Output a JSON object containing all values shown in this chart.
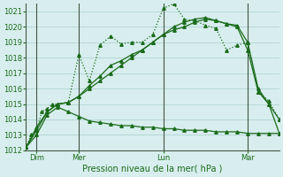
{
  "background_color": "#d8eeee",
  "grid_color": "#aacccc",
  "line_color": "#1a6b1a",
  "text_color": "#1a6b1a",
  "xlabel": "Pression niveau de la mer( hPa )",
  "ylim": [
    1012,
    1021.5
  ],
  "yticks": [
    1012,
    1013,
    1014,
    1015,
    1016,
    1017,
    1018,
    1019,
    1020,
    1021
  ],
  "vline_positions": [
    1,
    5,
    13,
    21
  ],
  "vline_labels": [
    "Dim",
    "Mer",
    "Lun",
    "Mar"
  ],
  "series": [
    {
      "x": [
        0,
        0.5,
        1.0,
        1.5,
        2.0,
        2.5,
        3.0,
        4.0,
        5.0,
        6.0,
        7.0,
        8.0,
        9.0,
        10.0,
        11.0,
        12.0,
        13.0,
        14.0,
        15.0,
        16.0,
        17.0,
        18.0,
        19.0,
        20.0,
        21.0,
        22.0,
        23.0,
        24.0
      ],
      "y": [
        1012.2,
        1013.0,
        1013.3,
        1014.5,
        1014.7,
        1015.0,
        1015.0,
        1015.1,
        1018.2,
        1016.5,
        1018.8,
        1019.4,
        1018.9,
        1019.0,
        1019.0,
        1019.5,
        1021.2,
        1021.5,
        1020.5,
        1020.4,
        1020.1,
        1019.9,
        1018.5,
        1018.8,
        1019.0,
        1015.8,
        1015.2,
        1014.0
      ],
      "style": "dotted",
      "marker": "^",
      "markersize": 2.5
    },
    {
      "x": [
        0,
        1,
        2,
        3,
        4,
        5,
        6,
        7,
        8,
        9,
        10,
        11,
        12,
        13,
        14,
        15,
        16,
        17,
        18,
        19,
        20,
        21,
        22,
        23,
        24
      ],
      "y": [
        1012.2,
        1013.3,
        1014.5,
        1015.0,
        1015.1,
        1015.5,
        1016.0,
        1016.5,
        1017.0,
        1017.5,
        1018.0,
        1018.5,
        1019.0,
        1019.5,
        1020.0,
        1020.3,
        1020.5,
        1020.6,
        1020.4,
        1020.2,
        1020.1,
        1019.0,
        1016.0,
        1015.0,
        1014.0
      ],
      "style": "solid",
      "marker": "^",
      "markersize": 2.5
    },
    {
      "x": [
        0,
        1,
        2,
        3,
        4,
        5,
        6,
        7,
        8,
        9,
        10,
        11,
        12,
        13,
        14,
        15,
        16,
        17,
        18,
        19,
        20,
        21,
        22,
        23,
        24
      ],
      "y": [
        1012.2,
        1013.5,
        1014.5,
        1015.0,
        1015.1,
        1015.5,
        1016.2,
        1016.8,
        1017.5,
        1017.8,
        1018.2,
        1018.5,
        1019.0,
        1019.5,
        1019.8,
        1020.0,
        1020.3,
        1020.5,
        1020.4,
        1020.2,
        1020.0,
        1018.5,
        1015.8,
        1015.0,
        1013.1
      ],
      "style": "solid",
      "marker": "^",
      "markersize": 2.5
    },
    {
      "x": [
        0,
        1,
        2,
        3,
        4,
        5,
        6,
        7,
        8,
        9,
        10,
        11,
        12,
        13,
        14,
        15,
        16,
        17,
        18,
        19,
        20,
        21,
        22,
        23,
        24
      ],
      "y": [
        1012.2,
        1013.0,
        1014.3,
        1014.8,
        1014.5,
        1014.2,
        1013.9,
        1013.8,
        1013.7,
        1013.6,
        1013.6,
        1013.5,
        1013.5,
        1013.4,
        1013.4,
        1013.3,
        1013.3,
        1013.3,
        1013.2,
        1013.2,
        1013.2,
        1013.1,
        1013.1,
        1013.1,
        1013.1
      ],
      "style": "solid",
      "marker": "^",
      "markersize": 2.5
    }
  ]
}
